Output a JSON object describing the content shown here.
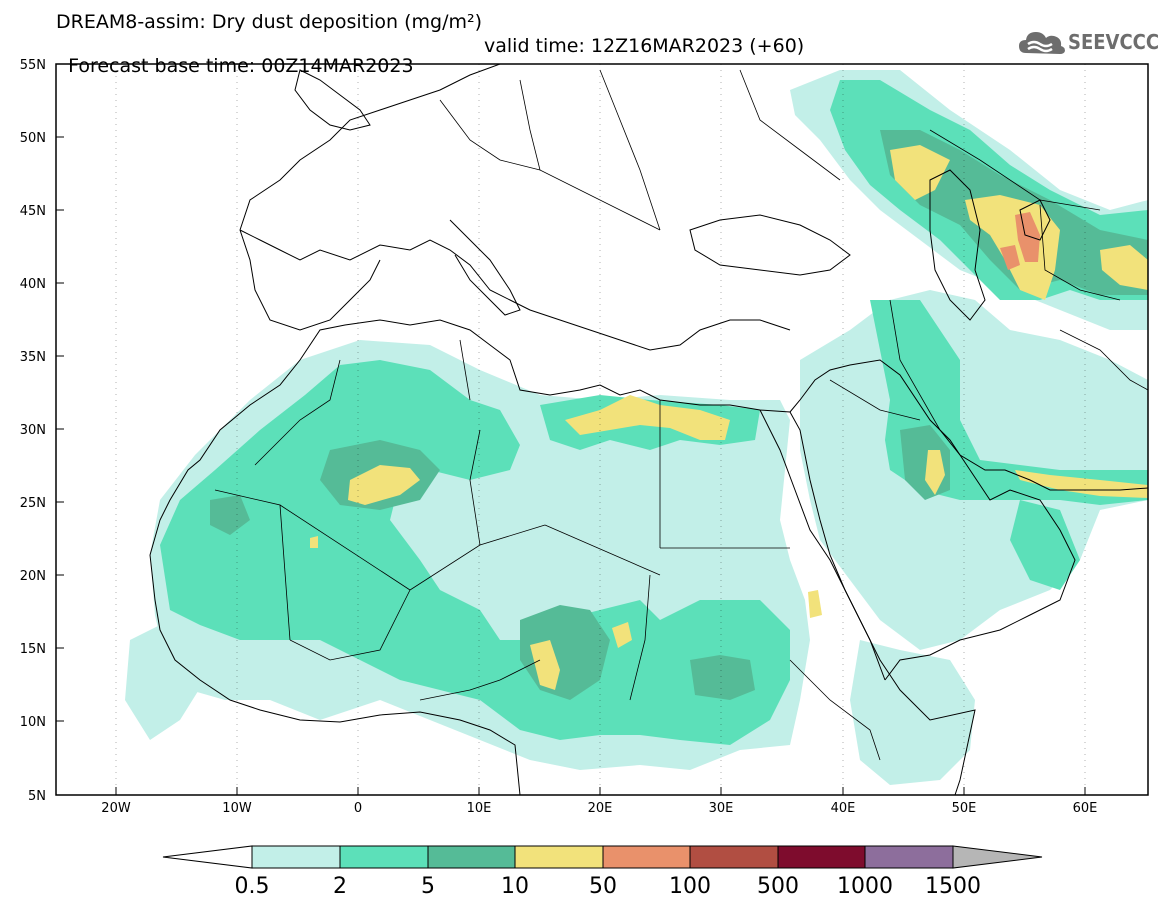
{
  "header": {
    "line1": "DREAM8-assim: Dry dust deposition (mg/m²)",
    "line2_base": "Forecast base time: 00Z14MAR2023",
    "line2_valid": "valid time: 12Z16MAR2023 (+60)"
  },
  "logo": {
    "text": "SEEVCCC",
    "icon": "cloud-icon"
  },
  "axes": {
    "x_ticks": [
      "20W",
      "10W",
      "0",
      "10E",
      "20E",
      "30E",
      "40E",
      "50E",
      "60E"
    ],
    "y_ticks": [
      "55N",
      "50N",
      "45N",
      "40N",
      "35N",
      "30N",
      "25N",
      "20N",
      "15N",
      "10N",
      "5N"
    ],
    "lon_range": [
      -25,
      65
    ],
    "lat_range": [
      5,
      55
    ]
  },
  "colorbar": {
    "labels": [
      "0.5",
      "2",
      "5",
      "10",
      "50",
      "100",
      "500",
      "1000",
      "1500"
    ],
    "colors": [
      "#c2efe8",
      "#5ce0b9",
      "#55bb97",
      "#f2e27b",
      "#e9916b",
      "#b14e42",
      "#7e0c2d",
      "#8d6e9c",
      "#b6b6b6"
    ]
  },
  "colors": {
    "l1": "#c2efe8",
    "l2": "#5ce0b9",
    "l3": "#55bb97",
    "l4": "#f2e27b",
    "l5": "#e9916b",
    "l6": "#b14e42"
  }
}
